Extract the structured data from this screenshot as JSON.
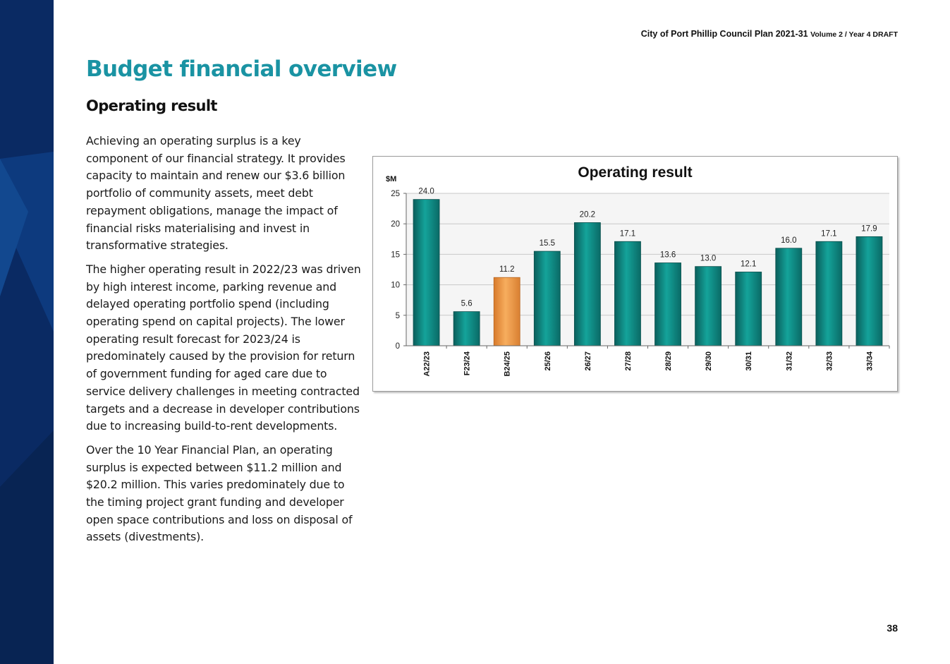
{
  "header": {
    "doc_title": "City of Port Phillip Council Plan 2021-31",
    "doc_subtitle": "Volume 2 / Year 4 DRAFT"
  },
  "page_title": "Budget financial overview",
  "section_title": "Operating result",
  "paragraphs": [
    "Achieving an operating surplus is a key component of our financial strategy. It provides capacity to maintain and renew our $3.6 billion portfolio of community assets, meet debt repayment obligations, manage the impact of financial risks materialising and invest in transformative strategies.",
    "The higher operating result in 2022/23 was driven by high interest income, parking revenue and delayed operating portfolio spend (including operating spend on capital projects). The lower operating result forecast for 2023/24 is predominately caused by the provision for return of government funding for aged care due to service delivery challenges in meeting contracted targets and a decrease in developer contributions due to increasing build-to-rent developments.",
    "Over the 10 Year Financial Plan, an operating surplus is expected between $11.2 million and $20.2 million. This varies predominately due to the timing project grant funding and developer open space contributions and loss on disposal of assets (divestments)."
  ],
  "page_number": "38",
  "colors": {
    "side_band": "#0a2a63",
    "title_teal": "#1a93a3",
    "bar_teal": "#0f8a84",
    "bar_highlight": "#f29a45"
  },
  "chart_data": {
    "type": "bar",
    "title": "Operating result",
    "ylabel": "$M",
    "xlabel": "",
    "categories": [
      "A22/23",
      "F23/24",
      "B24/25",
      "25/26",
      "26/27",
      "27/28",
      "28/29",
      "29/30",
      "30/31",
      "31/32",
      "32/33",
      "33/34"
    ],
    "values": [
      24.0,
      5.6,
      11.2,
      15.5,
      20.2,
      17.1,
      13.6,
      13.0,
      12.1,
      16.0,
      17.1,
      17.9
    ],
    "data_labels": [
      "24.0",
      "5.6",
      "11.2",
      "15.5",
      "20.2",
      "17.1",
      "13.6",
      "13.0",
      "12.1",
      "16.0",
      "17.1",
      "17.9"
    ],
    "highlight_category": "B24/25",
    "ylim": [
      0,
      25
    ],
    "yticks": [
      "0",
      "5",
      "10",
      "15",
      "20",
      "25"
    ],
    "grid": true,
    "legend": "none"
  }
}
